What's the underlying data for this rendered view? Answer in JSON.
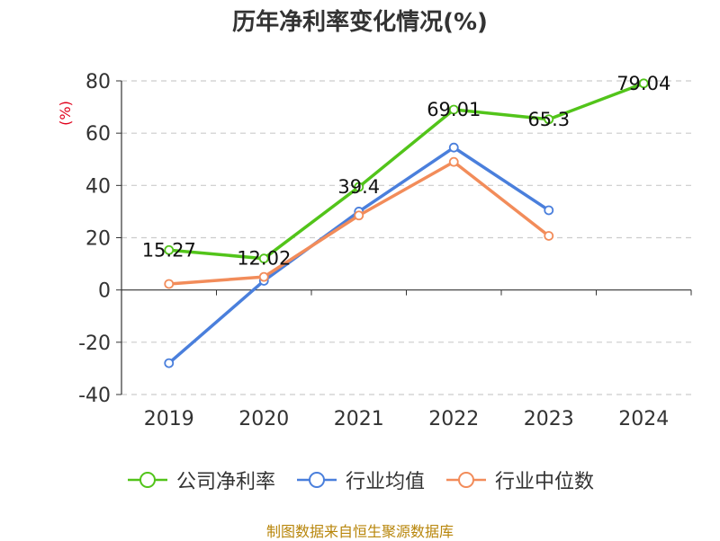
{
  "chart_data": {
    "type": "line",
    "title": "历年净利率变化情况(%)",
    "ylabel": "(%)",
    "xlabel": "",
    "categories": [
      "2019",
      "2020",
      "2021",
      "2022",
      "2023",
      "2024"
    ],
    "ylim": [
      -40,
      80
    ],
    "yticks": [
      80,
      60,
      40,
      20,
      0,
      -20,
      -40
    ],
    "grid": true,
    "legend_position": "bottom",
    "series": [
      {
        "name": "公司净利率",
        "color": "#52c41a",
        "values": [
          15.27,
          12.02,
          39.4,
          69.01,
          65.3,
          79.04
        ],
        "labels": [
          "15.27",
          "12.02",
          "39.4",
          "69.01",
          "65.3",
          "79.04"
        ]
      },
      {
        "name": "行业均值",
        "color": "#4a7fdc",
        "values": [
          -28,
          3.5,
          30,
          54.5,
          30.5,
          null
        ]
      },
      {
        "name": "行业中位数",
        "color": "#f28c5a",
        "values": [
          2.3,
          5,
          28.5,
          49,
          20.7,
          null
        ]
      }
    ]
  },
  "footer": {
    "source": "制图数据来自恒生聚源数据库"
  }
}
